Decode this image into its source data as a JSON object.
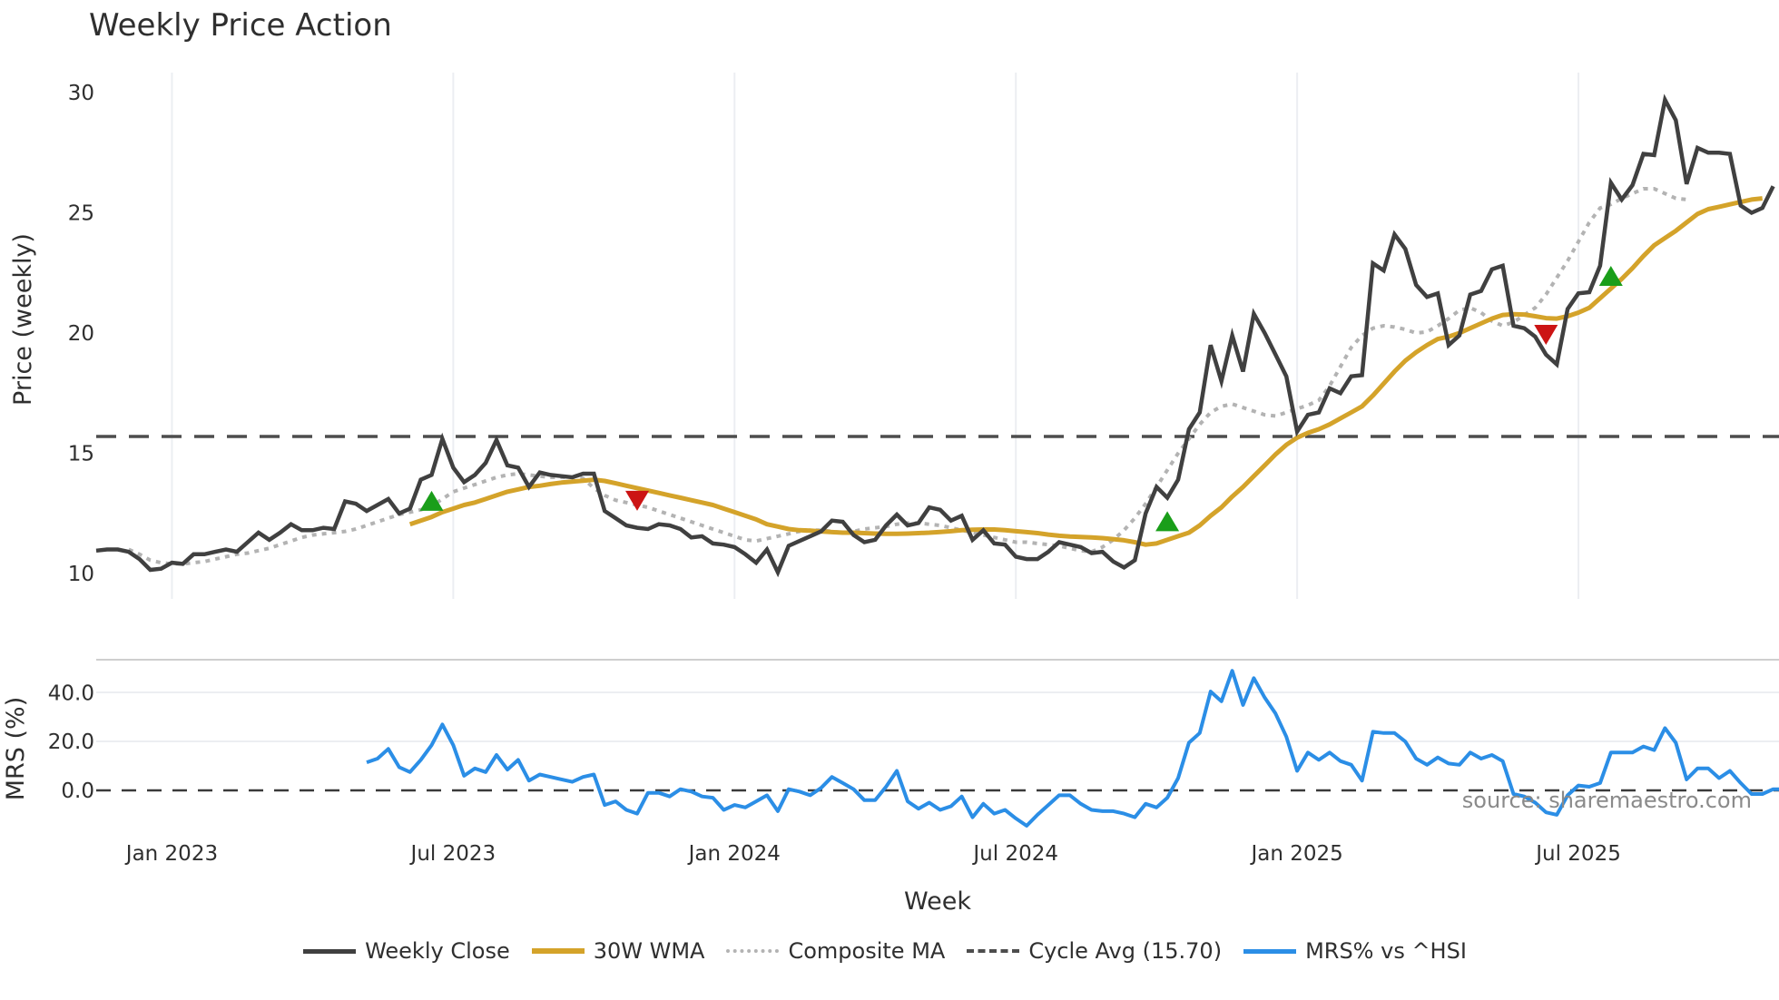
{
  "title": "Weekly Price Action",
  "source_label": "source: sharemaestro.com",
  "colors": {
    "weekly_close": "#404040",
    "wma": "#d4a32a",
    "composite": "#b3b3b3",
    "cycle_avg": "#4d4d4d",
    "mrs": "#2b8ee6",
    "buy_marker": "#1a9e1a",
    "sell_marker": "#cc1414",
    "grid": "#eceef2"
  },
  "legend": [
    {
      "name": "weekly-close",
      "label": "Weekly Close"
    },
    {
      "name": "wma",
      "label": "30W WMA"
    },
    {
      "name": "composite-ma",
      "label": "Composite MA"
    },
    {
      "name": "cycle-avg",
      "label": "Cycle Avg (15.70)"
    },
    {
      "name": "mrs",
      "label": "MRS% vs ^HSI"
    }
  ],
  "chart_data": [
    {
      "type": "line",
      "title": "Weekly Price Action",
      "xlabel": "Week",
      "ylabel": "Price (weekly)",
      "ylim": [
        9.0,
        30.8
      ],
      "yticks": [
        10,
        15,
        20,
        25,
        30
      ],
      "xticks": [
        "Jan 2023",
        "Jul 2023",
        "Jan 2024",
        "Jul 2024",
        "Jan 2025",
        "Jul 2025"
      ],
      "xtick_week_index": [
        7,
        33,
        59,
        85,
        111,
        137
      ],
      "grid": "vertical",
      "cycle_avg": 15.7,
      "series": [
        {
          "name": "Weekly Close",
          "values": [
            10.95,
            11.0,
            11.0,
            10.9,
            10.6,
            10.15,
            10.2,
            10.45,
            10.4,
            10.8,
            10.8,
            10.9,
            11.0,
            10.9,
            11.3,
            11.7,
            11.4,
            11.7,
            12.05,
            11.8,
            11.8,
            11.9,
            11.85,
            13.0,
            12.9,
            12.6,
            12.85,
            13.1,
            12.5,
            12.7,
            13.9,
            14.1,
            15.6,
            14.4,
            13.8,
            14.1,
            14.6,
            15.55,
            14.5,
            14.4,
            13.6,
            14.2,
            14.1,
            14.05,
            14.0,
            14.15,
            14.15,
            12.6,
            12.3,
            12.0,
            11.9,
            11.85,
            12.05,
            12.0,
            11.85,
            11.5,
            11.55,
            11.25,
            11.2,
            11.1,
            10.8,
            10.45,
            11.0,
            10.05,
            11.15,
            11.35,
            11.55,
            11.75,
            12.2,
            12.15,
            11.6,
            11.3,
            11.4,
            12.0,
            12.45,
            12.0,
            12.1,
            12.75,
            12.65,
            12.2,
            12.4,
            11.4,
            11.8,
            11.25,
            11.2,
            10.7,
            10.6,
            10.6,
            10.9,
            11.3,
            11.2,
            11.1,
            10.85,
            10.9,
            10.5,
            10.25,
            10.55,
            12.5,
            13.6,
            13.15,
            13.9,
            16.0,
            16.7,
            19.5,
            18.0,
            19.9,
            18.4,
            20.8,
            20.0,
            19.1,
            18.2,
            15.9,
            16.6,
            16.7,
            17.7,
            17.5,
            18.2,
            18.25,
            22.9,
            22.6,
            24.1,
            23.5,
            22.0,
            21.5,
            21.65,
            19.5,
            19.9,
            21.6,
            21.75,
            22.65,
            22.8,
            20.3,
            20.2,
            19.85,
            19.1,
            18.7,
            21.0,
            21.65,
            21.7,
            22.8,
            26.25,
            25.55,
            26.15,
            27.45,
            27.4,
            29.7,
            28.85,
            26.2,
            27.7,
            27.5,
            27.5,
            27.45,
            25.3,
            25.0,
            25.2,
            26.1
          ]
        },
        {
          "name": "30W WMA",
          "start_index": 29,
          "values": [
            12.05,
            12.2,
            12.35,
            12.55,
            12.7,
            12.85,
            12.95,
            13.1,
            13.25,
            13.4,
            13.5,
            13.6,
            13.65,
            13.72,
            13.78,
            13.82,
            13.86,
            13.9,
            13.85,
            13.75,
            13.65,
            13.55,
            13.45,
            13.35,
            13.25,
            13.15,
            13.05,
            12.95,
            12.85,
            12.7,
            12.55,
            12.4,
            12.25,
            12.05,
            11.95,
            11.85,
            11.8,
            11.78,
            11.75,
            11.72,
            11.7,
            11.7,
            11.68,
            11.66,
            11.65,
            11.65,
            11.66,
            11.68,
            11.7,
            11.73,
            11.76,
            11.8,
            11.82,
            11.83,
            11.83,
            11.8,
            11.76,
            11.72,
            11.68,
            11.62,
            11.57,
            11.54,
            11.52,
            11.5,
            11.47,
            11.43,
            11.38,
            11.3,
            11.2,
            11.25,
            11.4,
            11.55,
            11.7,
            12.0,
            12.4,
            12.75,
            13.2,
            13.6,
            14.05,
            14.5,
            14.95,
            15.35,
            15.65,
            15.85,
            16.0,
            16.2,
            16.45,
            16.7,
            16.95,
            17.4,
            17.9,
            18.4,
            18.85,
            19.2,
            19.5,
            19.75,
            19.85,
            20.0,
            20.2,
            20.4,
            20.6,
            20.75,
            20.78,
            20.77,
            20.7,
            20.62,
            20.6,
            20.7,
            20.85,
            21.05,
            21.45,
            21.85,
            22.25,
            22.7,
            23.2,
            23.65,
            23.95,
            24.25,
            24.6,
            24.95,
            25.15,
            25.25,
            25.35,
            25.45,
            25.55,
            25.6
          ]
        },
        {
          "name": "Composite MA",
          "start_index": 3,
          "values": [
            11.0,
            10.8,
            10.55,
            10.45,
            10.4,
            10.4,
            10.45,
            10.5,
            10.6,
            10.7,
            10.8,
            10.85,
            10.95,
            11.05,
            11.2,
            11.35,
            11.5,
            11.6,
            11.65,
            11.7,
            11.75,
            11.85,
            12.0,
            12.15,
            12.3,
            12.45,
            12.55,
            12.65,
            12.8,
            13.1,
            13.4,
            13.55,
            13.7,
            13.85,
            14.0,
            14.1,
            14.15,
            14.1,
            14.05,
            14.0,
            14.0,
            14.0,
            13.95,
            13.55,
            13.25,
            13.05,
            12.95,
            12.85,
            12.75,
            12.6,
            12.45,
            12.3,
            12.15,
            12.0,
            11.85,
            11.7,
            11.55,
            11.4,
            11.35,
            11.45,
            11.55,
            11.65,
            11.75,
            11.8,
            11.8,
            11.75,
            11.7,
            11.75,
            11.85,
            11.9,
            11.95,
            12.05,
            12.1,
            12.1,
            12.05,
            12.0,
            11.9,
            11.8,
            11.7,
            11.6,
            11.5,
            11.4,
            11.3,
            11.3,
            11.25,
            11.2,
            11.15,
            11.05,
            10.95,
            10.9,
            11.1,
            11.4,
            11.8,
            12.3,
            12.9,
            13.6,
            14.3,
            15.0,
            15.6,
            16.2,
            16.7,
            16.95,
            17.05,
            16.9,
            16.75,
            16.6,
            16.55,
            16.7,
            16.85,
            17.0,
            17.2,
            17.8,
            18.6,
            19.4,
            19.9,
            20.2,
            20.3,
            20.25,
            20.15,
            20.0,
            20.05,
            20.3,
            20.6,
            20.95,
            21.05,
            20.85,
            20.5,
            20.3,
            20.45,
            20.75,
            21.05,
            21.6,
            22.3,
            23.0,
            23.8,
            24.6,
            25.2,
            25.35,
            25.6,
            25.8,
            26.0,
            26.0,
            25.8,
            25.6,
            25.55
          ]
        },
        {
          "name": "MRS% vs ^HSI",
          "start_index": 25,
          "values": [
            11.5,
            13.0,
            17.0,
            9.5,
            7.5,
            12.5,
            18.5,
            27.0,
            18.5,
            6.0,
            9.0,
            7.5,
            14.5,
            8.5,
            12.5,
            4.0,
            6.5,
            5.5,
            4.5,
            3.5,
            5.5,
            6.5,
            -6.0,
            -4.5,
            -8.0,
            -9.5,
            -1.0,
            -1.0,
            -2.5,
            0.5,
            -0.5,
            -2.5,
            -3.0,
            -8.0,
            -6.0,
            -7.0,
            -4.5,
            -2.0,
            -8.5,
            0.5,
            -0.5,
            -2.0,
            1.0,
            5.5,
            3.0,
            0.5,
            -4.0,
            -4.0,
            1.5,
            8.0,
            -4.5,
            -7.5,
            -5.0,
            -8.0,
            -6.5,
            -2.5,
            -11.0,
            -5.5,
            -9.5,
            -8.0,
            -11.5,
            -14.5,
            -10.0,
            -6.0,
            -2.0,
            -2.0,
            -5.5,
            -8.0,
            -8.5,
            -8.5,
            -9.5,
            -11.0,
            -5.5,
            -7.0,
            -3.0,
            5.0,
            19.5,
            23.5,
            40.5,
            36.5,
            49.0,
            35.0,
            46.0,
            38.0,
            31.5,
            22.0,
            8.0,
            15.5,
            12.5,
            15.5,
            12.0,
            10.5,
            4.0,
            24.0,
            23.5,
            23.5,
            20.0,
            13.0,
            10.5,
            13.5,
            11.0,
            10.5,
            15.5,
            13.0,
            14.5,
            12.0,
            -1.5,
            -2.5,
            -5.0,
            -9.0,
            -10.0,
            -2.0,
            2.0,
            1.5,
            3.0,
            15.5,
            15.5,
            15.5,
            18.0,
            16.5,
            25.5,
            19.5,
            4.5,
            9.0,
            9.0,
            5.0,
            8.0,
            3.0,
            -1.5,
            -1.5,
            0.5,
            0.5
          ]
        }
      ],
      "markers": [
        {
          "type": "buy",
          "index": 31,
          "value": 12.95
        },
        {
          "type": "sell",
          "index": 50,
          "value": 13.1
        },
        {
          "type": "sell",
          "index": 134,
          "value": 20.0
        },
        {
          "type": "buy",
          "index": 99,
          "value": 12.1
        },
        {
          "type": "buy",
          "index": 140,
          "value": 22.3
        }
      ]
    },
    {
      "type": "line",
      "ylabel": "MRS (%)",
      "yticks": [
        0.0,
        20.0,
        40.0
      ],
      "ytick_labels": [
        "0.0",
        "20.0",
        "40.0"
      ],
      "ylim": [
        -20,
        52
      ],
      "zero_line": "dashed"
    }
  ],
  "axes": {
    "price_ylabel": "Price (weekly)",
    "mrs_ylabel": "MRS (%)",
    "xlabel": "Week",
    "price_yticks": [
      "10",
      "15",
      "20",
      "25",
      "30"
    ],
    "mrs_yticks": [
      "0.0",
      "20.0",
      "40.0"
    ],
    "xticks": [
      "Jan 2023",
      "Jul 2023",
      "Jan 2024",
      "Jul 2024",
      "Jan 2025",
      "Jul 2025"
    ]
  }
}
